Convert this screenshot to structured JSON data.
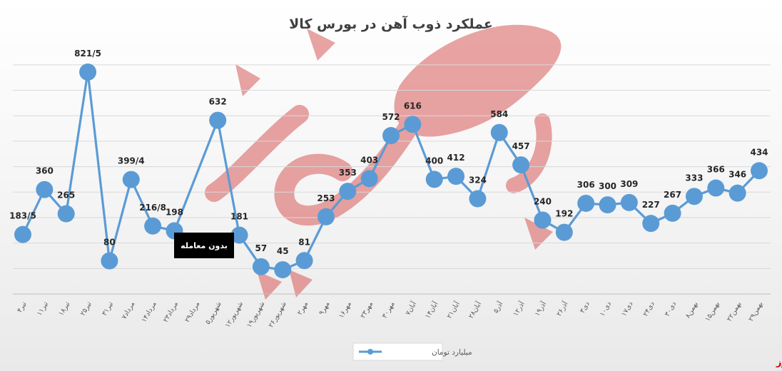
{
  "brand": "بورس نیوز",
  "chart_data": {
    "type": "line",
    "title": "عملکرد ذوب آهن در بورس کالا",
    "series": [
      {
        "name": "میلیارد تومان",
        "color": "#5b9bd5"
      }
    ],
    "categories": [
      "۴تیر",
      "۱۱تیر",
      "۱۸تیر",
      "۲۵تیر",
      "۳۱تیر",
      "۷مرداد",
      "۱۴مرداد",
      "۲۳مرداد",
      "۲۹مرداد",
      "۵شهریور",
      "۱۲شهریور",
      "۱۹شهریور",
      "۲۶شهریور",
      "۲مهر",
      "۹مهر",
      "۱۶مهر",
      "۲۳مهر",
      "۳۰مهر",
      "۷آبان",
      "۱۴آبان",
      "۲۱آبان",
      "۲۸آبان",
      "۵آذر",
      "۱۲آذر",
      "۱۹آذر",
      "۲۶آذر",
      "۳دی",
      "۱۰دی",
      "۱۷دی",
      "۲۴دی",
      "۳۰دی",
      "۸بهمن",
      "۱۵بهمن",
      "۲۲بهمن",
      "۲۹بهمن"
    ],
    "values": [
      183.5,
      360,
      265,
      821.5,
      80,
      399.4,
      216.8,
      198,
      null,
      632,
      181,
      57,
      45,
      81,
      253,
      353,
      403,
      572,
      616,
      400,
      412,
      324,
      584,
      457,
      240,
      192,
      306,
      300,
      309,
      227,
      267,
      333,
      366,
      346,
      434
    ],
    "labels": [
      "183/5",
      "360",
      "265",
      "821/5",
      "80",
      "399/4",
      "216/8",
      "198",
      "",
      "632",
      "181",
      "57",
      "45",
      "81",
      "253",
      "353",
      "403",
      "572",
      "616",
      "400",
      "412",
      "324",
      "584",
      "457",
      "240",
      "192",
      "306",
      "300",
      "309",
      "227",
      "267",
      "333",
      "366",
      "346",
      "434"
    ],
    "gap_annotation": "بدون معامله",
    "ylim": [
      -50,
      900
    ],
    "grid": true,
    "legend": "bottom"
  }
}
